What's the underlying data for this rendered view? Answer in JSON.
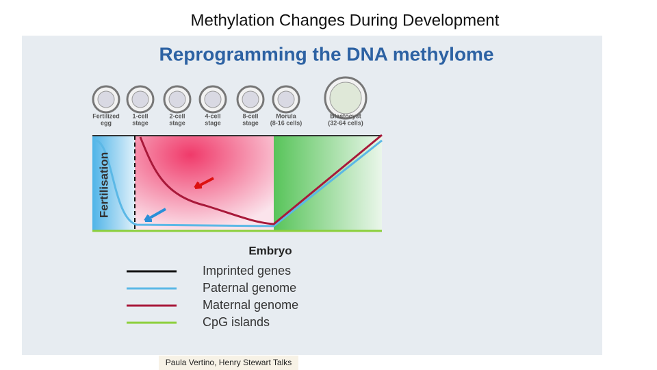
{
  "slide": {
    "title": "Methylation Changes During Development",
    "caption": "Paula Vertino, Henry Stewart Talks"
  },
  "figure": {
    "title": "Reprogramming the DNA methylome",
    "stages": [
      {
        "lines": [
          "Fertilized",
          "egg"
        ]
      },
      {
        "lines": [
          "1-cell",
          "stage"
        ]
      },
      {
        "lines": [
          "2-cell",
          "stage"
        ]
      },
      {
        "lines": [
          "4-cell",
          "stage"
        ]
      },
      {
        "lines": [
          "8-cell",
          "stage"
        ]
      },
      {
        "lines": [
          "Morula",
          "(8-16 cells)"
        ]
      },
      {
        "lines": [
          "Blastocyst",
          "(32-64 cells)"
        ]
      }
    ],
    "event_label": "Fertilisation",
    "x_label": "Embryo",
    "legend": [
      {
        "label": "Imprinted genes",
        "color": "#111111"
      },
      {
        "label": "Paternal genome",
        "color": "#5bb8e6"
      },
      {
        "label": "Maternal genome",
        "color": "#a8193a"
      },
      {
        "label": "CpG islands",
        "color": "#8ccf3c"
      }
    ]
  }
}
